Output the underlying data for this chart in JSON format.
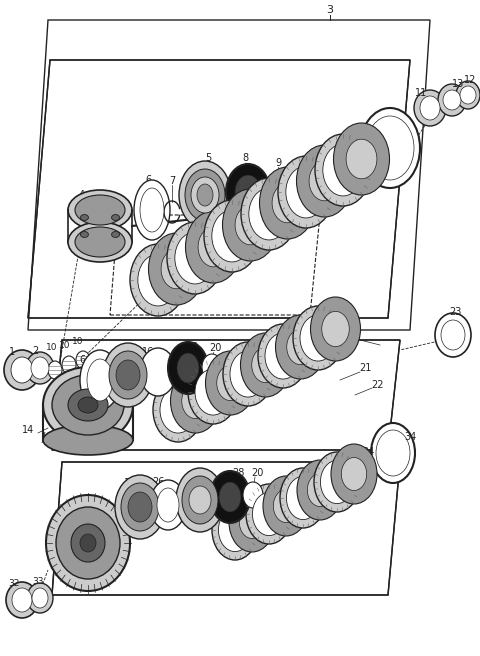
{
  "bg": "#ffffff",
  "lc": "#222222",
  "gray1": "#cccccc",
  "gray2": "#999999",
  "gray3": "#666666",
  "gray4": "#444444",
  "black": "#111111",
  "white": "#ffffff",
  "figw": 4.8,
  "figh": 6.56,
  "dpi": 100
}
